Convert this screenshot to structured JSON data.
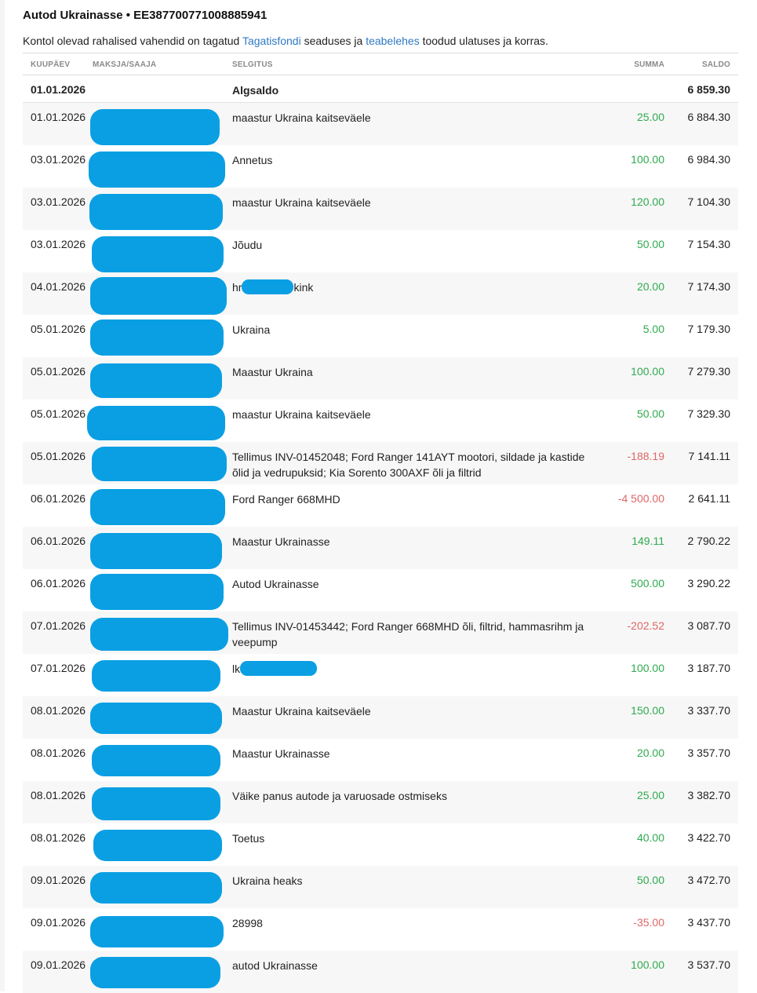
{
  "header": {
    "title": "Autod Ukrainasse • EE387700771008885941",
    "notice_pre": "Kontol olevad rahalised vahendid on tagatud ",
    "notice_link1": "Tagatisfondi",
    "notice_mid": " seaduses ja ",
    "notice_link2": "teabelehes",
    "notice_post": " toodud ulatuses ja korras."
  },
  "columns": {
    "date": "KUUPÄEV",
    "payer": "MAKSJA/SAAJA",
    "desc": "SELGITUS",
    "sum": "SUMMA",
    "balance": "SALDO"
  },
  "opening": {
    "date": "01.01.2026",
    "desc": "Algsaldo",
    "balance": "6 859.30"
  },
  "rows": [
    {
      "date": "01.01.2026",
      "desc": "maastur Ukraina kaitseväele",
      "sum": "25.00",
      "type": "pos",
      "balance": "6 884.30"
    },
    {
      "date": "03.01.2026",
      "desc": "Annetus",
      "sum": "100.00",
      "type": "pos",
      "balance": "6 984.30"
    },
    {
      "date": "03.01.2026",
      "desc": "maastur Ukraina kaitseväele",
      "sum": "120.00",
      "type": "pos",
      "balance": "7 104.30"
    },
    {
      "date": "03.01.2026",
      "desc": "Jõudu",
      "sum": "50.00",
      "type": "pos",
      "balance": "7 154.30"
    },
    {
      "date": "04.01.2026",
      "desc_pre": "hr",
      "desc_post": "kink",
      "sum": "20.00",
      "type": "pos",
      "balance": "7 174.30"
    },
    {
      "date": "05.01.2026",
      "desc": "Ukraina",
      "sum": "5.00",
      "type": "pos",
      "balance": "7 179.30"
    },
    {
      "date": "05.01.2026",
      "desc": "Maastur Ukraina",
      "sum": "100.00",
      "type": "pos",
      "balance": "7 279.30"
    },
    {
      "date": "05.01.2026",
      "desc": "maastur Ukraina kaitseväele",
      "sum": "50.00",
      "type": "pos",
      "balance": "7 329.30"
    },
    {
      "date": "05.01.2026",
      "desc": "Tellimus INV-01452048; Ford Ranger 141AYT mootori, sildade ja kastide õlid ja vedrupuksid; Kia Sorento 300AXF õli ja filtrid",
      "sum": "-188.19",
      "type": "neg",
      "balance": "7 141.11"
    },
    {
      "date": "06.01.2026",
      "desc": "Ford Ranger 668MHD",
      "sum": "-4 500.00",
      "type": "neg",
      "balance": "2 641.11"
    },
    {
      "date": "06.01.2026",
      "desc": "Maastur Ukrainasse",
      "sum": "149.11",
      "type": "pos",
      "balance": "2 790.22"
    },
    {
      "date": "06.01.2026",
      "desc": "Autod Ukrainasse",
      "sum": "500.00",
      "type": "pos",
      "balance": "3 290.22"
    },
    {
      "date": "07.01.2026",
      "desc": "Tellimus INV-01453442; Ford Ranger 668MHD õli, filtrid, hammasrihm ja veepump",
      "sum": "-202.52",
      "type": "neg",
      "balance": "3 087.70"
    },
    {
      "date": "07.01.2026",
      "desc_pre": "lk",
      "desc_post": "",
      "sum": "100.00",
      "type": "pos",
      "balance": "3 187.70"
    },
    {
      "date": "08.01.2026",
      "desc": "Maastur Ukraina kaitseväele",
      "sum": "150.00",
      "type": "pos",
      "balance": "3 337.70"
    },
    {
      "date": "08.01.2026",
      "desc": "Maastur Ukrainasse",
      "sum": "20.00",
      "type": "pos",
      "balance": "3 357.70"
    },
    {
      "date": "08.01.2026",
      "desc": "Väike panus autode ja varuosade ostmiseks",
      "sum": "25.00",
      "type": "pos",
      "balance": "3 382.70"
    },
    {
      "date": "08.01.2026",
      "desc": "Toetus",
      "sum": "40.00",
      "type": "pos",
      "balance": "3 422.70"
    },
    {
      "date": "09.01.2026",
      "desc": "Ukraina heaks",
      "sum": "50.00",
      "type": "pos",
      "balance": "3 472.70"
    },
    {
      "date": "09.01.2026",
      "desc": "28998",
      "sum": "-35.00",
      "type": "neg",
      "balance": "3 437.70"
    },
    {
      "date": "09.01.2026",
      "desc": "autod Ukrainasse",
      "sum": "100.00",
      "type": "pos",
      "balance": "3 537.70"
    }
  ]
}
